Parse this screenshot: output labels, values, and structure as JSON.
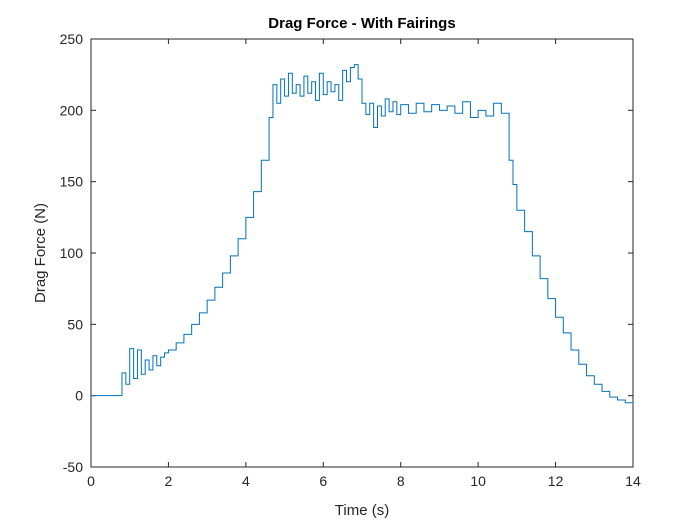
{
  "chart_data": {
    "type": "line",
    "title": "Drag Force - With Fairings",
    "xlabel": "Time (s)",
    "ylabel": "Drag Force (N)",
    "xlim": [
      0,
      14
    ],
    "ylim": [
      -50,
      250
    ],
    "xticks": [
      0,
      2,
      4,
      6,
      8,
      10,
      12,
      14
    ],
    "yticks": [
      -50,
      0,
      50,
      100,
      150,
      200,
      250
    ],
    "xtick_labels": [
      "0",
      "2",
      "4",
      "6",
      "8",
      "10",
      "12",
      "14"
    ],
    "ytick_labels": [
      "-50",
      "0",
      "50",
      "100",
      "150",
      "200",
      "250"
    ],
    "grid": false,
    "box": true,
    "series": [
      {
        "color": "#0072bd",
        "step": true,
        "x": [
          0,
          0.8,
          0.9,
          1.0,
          1.1,
          1.2,
          1.3,
          1.4,
          1.5,
          1.6,
          1.7,
          1.8,
          1.9,
          2.0,
          2.2,
          2.4,
          2.6,
          2.8,
          3.0,
          3.2,
          3.4,
          3.6,
          3.8,
          4.0,
          4.2,
          4.4,
          4.6,
          4.7,
          4.8,
          4.9,
          5.0,
          5.1,
          5.2,
          5.3,
          5.4,
          5.5,
          5.6,
          5.7,
          5.8,
          5.9,
          6.0,
          6.1,
          6.2,
          6.3,
          6.4,
          6.5,
          6.6,
          6.7,
          6.8,
          6.9,
          7.0,
          7.1,
          7.2,
          7.3,
          7.4,
          7.5,
          7.6,
          7.7,
          7.8,
          7.9,
          8.0,
          8.2,
          8.4,
          8.6,
          8.8,
          9.0,
          9.2,
          9.4,
          9.6,
          9.8,
          10.0,
          10.2,
          10.4,
          10.6,
          10.8,
          10.9,
          11.0,
          11.2,
          11.4,
          11.6,
          11.8,
          12.0,
          12.2,
          12.4,
          12.6,
          12.8,
          13.0,
          13.2,
          13.4,
          13.6,
          13.8,
          14.0
        ],
        "y": [
          0,
          16,
          8,
          33,
          12,
          32,
          15,
          25,
          18,
          28,
          21,
          27,
          30,
          32,
          37,
          43,
          50,
          58,
          67,
          76,
          86,
          98,
          110,
          125,
          143,
          165,
          195,
          218,
          205,
          222,
          210,
          226,
          212,
          218,
          210,
          224,
          212,
          220,
          207,
          226,
          211,
          220,
          213,
          218,
          207,
          228,
          220,
          230,
          232,
          222,
          205,
          197,
          205,
          188,
          203,
          196,
          208,
          199,
          206,
          197,
          204,
          198,
          205,
          199,
          204,
          200,
          203,
          198,
          206,
          195,
          200,
          196,
          205,
          198,
          165,
          148,
          130,
          115,
          98,
          82,
          68,
          55,
          44,
          32,
          22,
          14,
          8,
          3,
          -1,
          -3,
          -5,
          -6
        ]
      }
    ]
  }
}
